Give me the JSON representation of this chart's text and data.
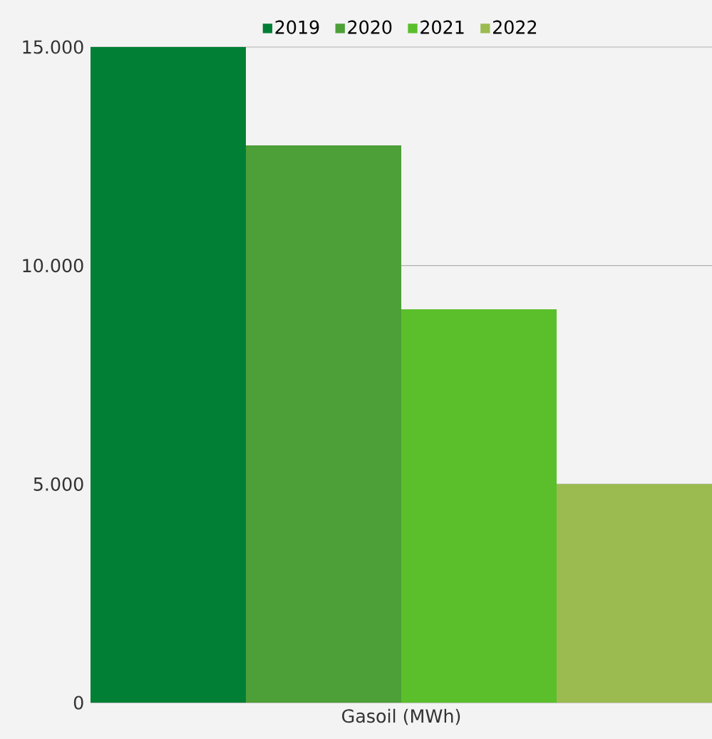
{
  "chart_data": {
    "type": "bar",
    "categories": [
      "Gasoil (MWh)"
    ],
    "series": [
      {
        "name": "2019",
        "color": "#007f35",
        "values": [
          15000
        ]
      },
      {
        "name": "2020",
        "color": "#4d9f37",
        "values": [
          12750
        ]
      },
      {
        "name": "2021",
        "color": "#5abf2b",
        "values": [
          9000
        ]
      },
      {
        "name": "2022",
        "color": "#9bba50",
        "values": [
          5000
        ]
      }
    ],
    "ylim": [
      0,
      15000
    ],
    "yticks": [
      0,
      {
        "value": 5000,
        "label": "5.000"
      },
      {
        "value": 10000,
        "label": "10.000"
      },
      {
        "value": 15000,
        "label": "15.000"
      }
    ],
    "grid": "y",
    "legend": "top"
  }
}
